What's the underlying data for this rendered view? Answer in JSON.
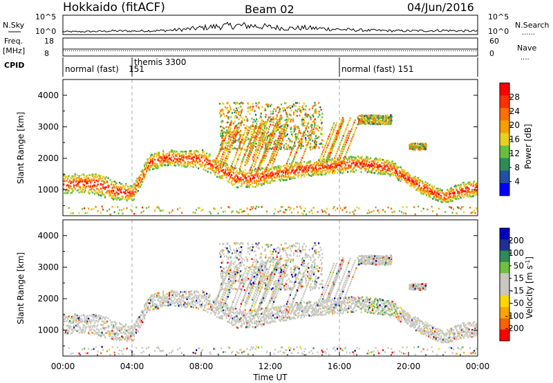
{
  "header": {
    "station": "Hokkaido (fitACF)",
    "beam": "Beam 02",
    "date": "04/Jun/2016"
  },
  "strip_panels": {
    "nsky": {
      "label": "N.Sky",
      "ticks": [
        "10^5",
        "10^0"
      ],
      "right_ticks": [
        "10^5",
        "10^0"
      ],
      "right_label": "N.Search",
      "right_symbol": "......"
    },
    "freq": {
      "label_top": "Freq.",
      "label_bottom": "[MHz]",
      "ticks": [
        "18",
        "8"
      ],
      "right_ticks": [
        "60",
        "0"
      ],
      "right_label": "Nave",
      "right_symbol": "...."
    },
    "cpid": {
      "label": "CPID",
      "segments": [
        {
          "name": "normal (fast)",
          "id": "151",
          "start_hour": 0
        },
        {
          "name": "themis",
          "id": "3300",
          "start_hour": 4
        },
        {
          "name": "normal (fast)",
          "id": "151",
          "start_hour": 16
        }
      ]
    }
  },
  "colors": {
    "power_scale": [
      "#0000ff",
      "#2050a0",
      "#2e8b57",
      "#66c040",
      "#e8d020",
      "#f5a000",
      "#ff7000",
      "#ff3000",
      "#ff0000"
    ],
    "velocity_scale": [
      "#ff0000",
      "#ff6000",
      "#ffa500",
      "#ffd800",
      "#c8c8c0",
      "#c8c8c0",
      "#70c040",
      "#2e8b57",
      "#203090",
      "#0000c0"
    ],
    "ground_scatter": "#c8c8c0"
  },
  "chart_data": [
    {
      "type": "heatmap",
      "name": "power",
      "xlabel": "",
      "ylabel": "Slant Range [km]",
      "xlim": [
        0,
        24
      ],
      "ylim": [
        180,
        4500
      ],
      "yticks": [
        1000,
        2000,
        3000,
        4000
      ],
      "colorbar": {
        "label": "Power [dB]",
        "ticks": [
          "28",
          "24",
          "20",
          "16",
          "12",
          "8",
          "4"
        ],
        "range": [
          0,
          32
        ]
      },
      "bands": [
        {
          "x": [
            0,
            1,
            2,
            3,
            4,
            5,
            6,
            7,
            8,
            9,
            10,
            11,
            12,
            13,
            14,
            15,
            16,
            17,
            18,
            19,
            20,
            21,
            22,
            23,
            24
          ],
          "y_center": [
            1200,
            1250,
            1200,
            1000,
            900,
            1900,
            2050,
            2000,
            2000,
            1700,
            1400,
            1400,
            1500,
            1600,
            1700,
            1750,
            1800,
            1850,
            1800,
            1700,
            1350,
            1050,
            800,
            1000,
            1100
          ],
          "width": [
            600,
            600,
            700,
            600,
            500,
            500,
            500,
            500,
            600,
            600,
            600,
            600,
            500,
            500,
            500,
            500,
            500,
            500,
            500,
            500,
            450,
            450,
            400,
            500,
            500
          ]
        }
      ],
      "patches": [
        {
          "x": [
            9,
            15
          ],
          "y": [
            2300,
            3800
          ]
        },
        {
          "x": [
            17,
            19
          ],
          "y": [
            3100,
            3400
          ]
        },
        {
          "x": [
            20,
            21
          ],
          "y": [
            2300,
            2500
          ]
        }
      ]
    },
    {
      "type": "heatmap",
      "name": "velocity",
      "xlabel": "Time UT",
      "ylabel": "Slant Range [km]",
      "xlim": [
        0,
        24
      ],
      "ylim": [
        180,
        4500
      ],
      "xticks": [
        "00:00",
        "04:00",
        "08:00",
        "12:00",
        "16:00",
        "20:00",
        "00:00"
      ],
      "yticks": [
        1000,
        2000,
        3000,
        4000
      ],
      "colorbar": {
        "label": "Velocity [m s^-1]",
        "ticks": [
          "200",
          "100",
          "50",
          "15",
          "-15",
          "-50",
          "-100",
          "-200"
        ],
        "range": [
          -250,
          250
        ]
      },
      "dashed_lines_hours": [
        4,
        16
      ]
    }
  ],
  "nsky_profile": [
    1,
    1,
    1.2,
    1.5,
    1.4,
    1.6,
    1.8,
    2.5,
    3.5,
    4.5,
    5,
    4.8,
    4,
    3.2,
    3.5,
    3,
    2.5,
    2,
    1.8,
    1.6,
    1.5,
    1.6,
    1.8,
    1.5,
    1.4
  ]
}
